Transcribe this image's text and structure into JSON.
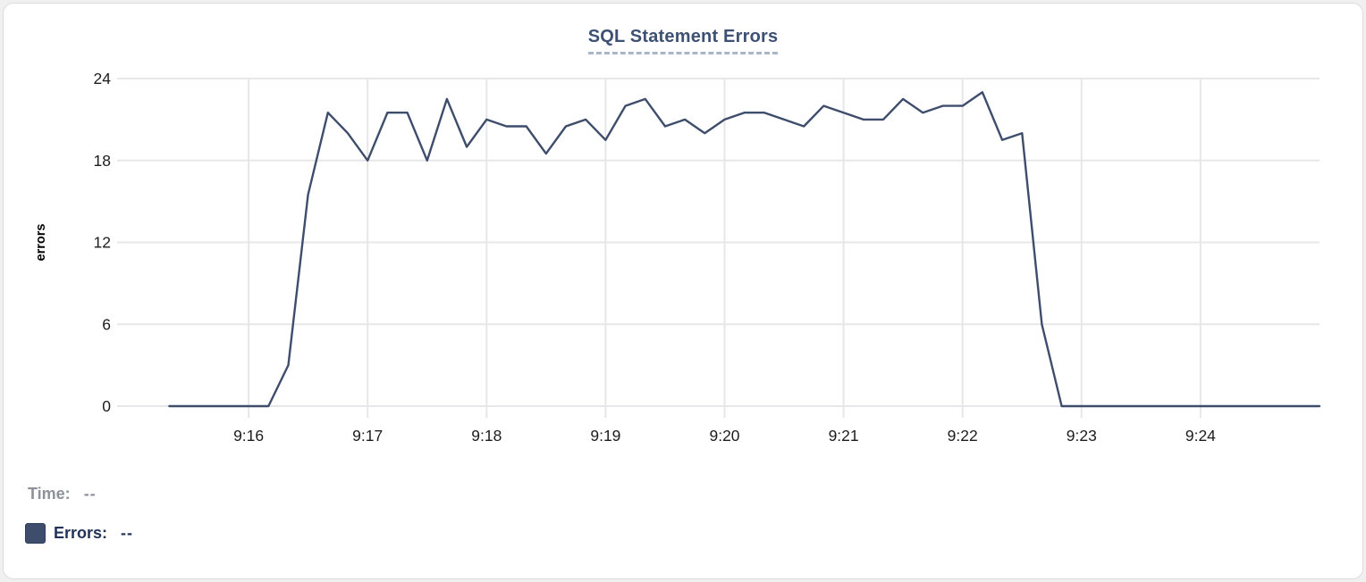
{
  "card": {
    "title": "SQL Statement Errors"
  },
  "hover_readout": {
    "time_label": "Time:",
    "time_value": "--",
    "errors_label": "Errors:",
    "errors_value": "--"
  },
  "colors": {
    "line": "#3e4d6c",
    "title": "#3e5174",
    "title_underline": "#a9b5c9",
    "grid": "#e7e7e9",
    "tick_text": "#1c1c1e",
    "axis_title_text": "#000000",
    "legend_time_text": "#8c919b",
    "legend_errors_text": "#223259",
    "legend_swatch": "#3e4d6c"
  },
  "chart_data": {
    "type": "line",
    "title": "SQL Statement Errors",
    "xlabel": "",
    "ylabel": "errors",
    "series_name": "Errors",
    "grid": true,
    "legend_position": "none",
    "ylim": [
      0,
      24
    ],
    "y_ticks": [
      0,
      6,
      12,
      18,
      24
    ],
    "x_axis_range": [
      "9:15:00",
      "9:25:00"
    ],
    "x_tick_labels": [
      "9:16",
      "9:17",
      "9:18",
      "9:19",
      "9:20",
      "9:21",
      "9:22",
      "9:23",
      "9:24"
    ],
    "interval_seconds": 10,
    "x": [
      "9:15:20",
      "9:15:30",
      "9:15:40",
      "9:15:50",
      "9:16:00",
      "9:16:10",
      "9:16:20",
      "9:16:30",
      "9:16:40",
      "9:16:50",
      "9:17:00",
      "9:17:10",
      "9:17:20",
      "9:17:30",
      "9:17:40",
      "9:17:50",
      "9:18:00",
      "9:18:10",
      "9:18:20",
      "9:18:30",
      "9:18:40",
      "9:18:50",
      "9:19:00",
      "9:19:10",
      "9:19:20",
      "9:19:30",
      "9:19:40",
      "9:19:50",
      "9:20:00",
      "9:20:10",
      "9:20:20",
      "9:20:30",
      "9:20:40",
      "9:20:50",
      "9:21:00",
      "9:21:10",
      "9:21:20",
      "9:21:30",
      "9:21:40",
      "9:21:50",
      "9:22:00",
      "9:22:10",
      "9:22:20",
      "9:22:30",
      "9:22:40",
      "9:22:50",
      "9:23:00",
      "9:23:10",
      "9:23:20",
      "9:23:30",
      "9:23:40",
      "9:23:50",
      "9:24:00",
      "9:24:10",
      "9:24:20",
      "9:24:30",
      "9:24:40",
      "9:24:50",
      "9:25:00"
    ],
    "values": [
      0,
      0,
      0,
      0,
      0,
      0,
      3,
      15.5,
      21.5,
      20,
      18,
      21.5,
      21.5,
      18,
      22.5,
      19,
      21,
      20.5,
      20.5,
      18.5,
      20.5,
      21,
      19.5,
      22,
      22.5,
      20.5,
      21,
      20,
      21,
      21.5,
      21.5,
      21,
      20.5,
      22,
      21.5,
      21,
      21,
      22.5,
      21.5,
      22,
      22,
      23,
      19.5,
      20,
      6,
      0,
      0,
      0,
      0,
      0,
      0,
      0,
      0,
      0,
      0,
      0,
      0,
      0,
      0
    ]
  }
}
